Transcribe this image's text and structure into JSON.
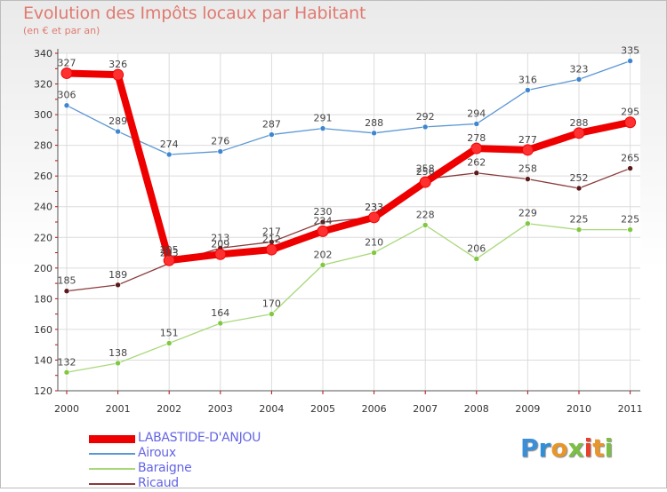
{
  "title": "Evolution des Impôts locaux par Habitant",
  "subtitle": "(en € et par an)",
  "logo": {
    "text": [
      "P",
      "r",
      "o",
      "x",
      "i",
      "t",
      "i"
    ],
    "colors": [
      "#3a8fd8",
      "#2f8fd8",
      "#e8962a",
      "#7bc043",
      "#e8402a",
      "#e8962a",
      "#7bc043"
    ]
  },
  "chart_data": {
    "type": "line",
    "title": "Evolution des Impôts locaux par Habitant",
    "ylabel": "(en € et par an)",
    "x": [
      "2000",
      "2001",
      "2002",
      "2003",
      "2004",
      "2005",
      "2006",
      "2007",
      "2008",
      "2009",
      "2010",
      "2011"
    ],
    "ylim": [
      120,
      340
    ],
    "yticks": [
      "120",
      "140",
      "160",
      "180",
      "200",
      "220",
      "240",
      "260",
      "280",
      "300",
      "320",
      "340"
    ],
    "grid": true,
    "legend_position": "bottom-left",
    "series": [
      {
        "name": "LABASTIDE-D'ANJOU",
        "color": "#ee0000",
        "marker": "#ff3030",
        "bold": true,
        "values": [
          327,
          326,
          205,
          209,
          212,
          224,
          233,
          256,
          278,
          277,
          288,
          295
        ],
        "labels": [
          "327",
          "326",
          "205",
          "209",
          "212",
          "224",
          "233",
          "256",
          "278",
          "277",
          "288",
          "295"
        ]
      },
      {
        "name": "Airoux",
        "color": "#5b97d4",
        "marker": "#3f86d0",
        "bold": false,
        "values": [
          306,
          289,
          274,
          276,
          287,
          291,
          288,
          292,
          294,
          316,
          323,
          335
        ],
        "labels": [
          "306",
          "289",
          "274",
          "276",
          "287",
          "291",
          "288",
          "292",
          "294",
          "316",
          "323",
          "335"
        ]
      },
      {
        "name": "Baraigne",
        "color": "#a8d878",
        "marker": "#80c840",
        "bold": false,
        "values": [
          132,
          138,
          151,
          164,
          170,
          202,
          210,
          228,
          206,
          229,
          225,
          225
        ],
        "labels": [
          "132",
          "138",
          "151",
          "164",
          "170",
          "202",
          "210",
          "228",
          "206",
          "229",
          "225",
          "225"
        ]
      },
      {
        "name": "Ricaud",
        "color": "#8a3a3a",
        "marker": "#5a1a1a",
        "bold": false,
        "values": [
          185,
          189,
          203,
          213,
          217,
          230,
          233,
          258,
          262,
          258,
          252,
          265
        ],
        "labels": [
          "185",
          "189",
          "203",
          "213",
          "217",
          "230",
          "233",
          "258",
          "262",
          "258",
          "252",
          "265"
        ]
      }
    ]
  }
}
